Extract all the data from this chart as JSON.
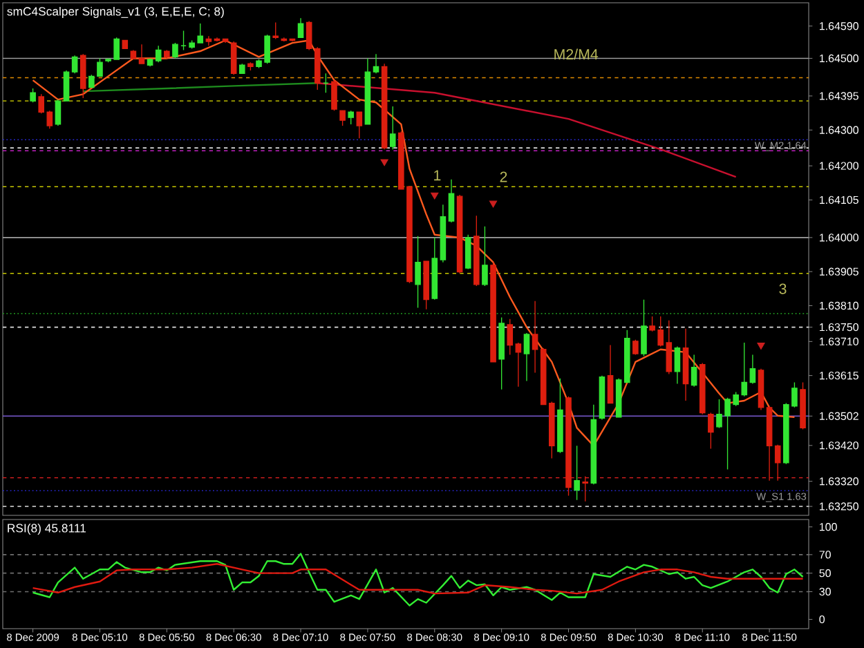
{
  "chart_data": [
    {
      "type": "candlestick",
      "title": "smC4Scalper Signals_v1 (3, E,E,E, C; 8)",
      "categories": [
        null,
        null,
        null,
        null,
        null,
        null,
        null,
        null,
        null,
        null,
        null,
        null,
        null,
        null,
        null,
        null,
        null,
        null,
        null,
        null,
        null,
        null,
        null,
        null,
        null,
        null,
        null,
        null,
        null,
        null,
        null,
        null,
        null,
        null,
        null,
        null,
        null,
        null,
        null,
        null,
        null,
        null,
        null,
        null,
        null,
        null,
        null,
        null,
        null,
        null,
        null,
        null,
        null,
        null,
        null,
        null,
        null,
        null,
        null,
        null,
        null,
        null,
        null,
        null,
        null,
        null,
        null,
        null,
        null,
        null,
        null,
        null,
        null,
        null,
        null,
        null,
        null,
        null,
        null,
        null,
        null,
        null,
        null,
        null,
        null,
        null,
        null,
        null,
        null,
        null,
        null,
        null,
        null
      ],
      "ohlc": [
        [
          1.64381,
          1.64416,
          1.64377,
          1.64404
        ],
        [
          1.64393,
          1.644,
          1.64346,
          1.6435
        ],
        [
          1.6435,
          1.64354,
          1.64304,
          1.64312
        ],
        [
          1.64316,
          1.64385,
          1.64312,
          1.64381
        ],
        [
          1.64381,
          1.64466,
          1.64381,
          1.64462
        ],
        [
          1.64462,
          1.64508,
          1.64458,
          1.64504
        ],
        [
          1.64508,
          1.64512,
          1.64389,
          1.64416
        ],
        [
          1.64419,
          1.64454,
          1.64419,
          1.6445
        ],
        [
          1.6445,
          1.645,
          1.6445,
          1.64489
        ],
        [
          1.64493,
          1.645,
          1.64489,
          1.64497
        ],
        [
          1.64497,
          1.64558,
          1.64497,
          1.64554
        ],
        [
          1.6455,
          1.6455,
          1.64527,
          1.64527
        ],
        [
          1.6452,
          1.64523,
          1.64497,
          1.645
        ],
        [
          1.645,
          1.64539,
          1.64485,
          1.64485
        ],
        [
          1.64481,
          1.645,
          1.64477,
          1.64497
        ],
        [
          1.64493,
          1.64535,
          1.64489,
          1.64523
        ],
        [
          1.6452,
          1.64523,
          1.645,
          1.64504
        ],
        [
          1.64504,
          1.64543,
          1.645,
          1.64539
        ],
        [
          1.64535,
          1.64577,
          1.64523,
          1.64535
        ],
        [
          1.64531,
          1.6455,
          1.64527,
          1.64543
        ],
        [
          1.64543,
          1.64597,
          1.64543,
          1.64562
        ],
        [
          1.64554,
          1.64562,
          1.64535,
          1.64547
        ],
        [
          1.64554,
          1.64558,
          1.64547,
          1.6455
        ],
        [
          1.64554,
          1.64554,
          1.64543,
          1.64547
        ],
        [
          1.64543,
          1.64547,
          1.64454,
          1.64458
        ],
        [
          1.64458,
          1.64485,
          1.64458,
          1.64481
        ],
        [
          1.64485,
          1.64489,
          1.64466,
          1.64477
        ],
        [
          1.64477,
          1.64497,
          1.64473,
          1.64493
        ],
        [
          1.64489,
          1.64566,
          1.64485,
          1.64562
        ],
        [
          1.64562,
          1.646,
          1.64554,
          1.64558
        ],
        [
          1.64554,
          1.64558,
          1.64547,
          1.6455
        ],
        [
          1.64554,
          1.64554,
          1.64547,
          1.6455
        ],
        [
          1.64558,
          1.64612,
          1.64558,
          1.64597
        ],
        [
          1.646,
          1.64604,
          1.64523,
          1.64527
        ],
        [
          1.64527,
          1.64531,
          1.64412,
          1.64431
        ],
        [
          1.64431,
          1.64458,
          1.64404,
          1.64431
        ],
        [
          1.64435,
          1.64439,
          1.64354,
          1.64358
        ],
        [
          1.64354,
          1.64354,
          1.64312,
          1.64327
        ],
        [
          1.64335,
          1.64354,
          1.64316,
          1.6435
        ],
        [
          1.6435,
          1.6435,
          1.64277,
          1.64312
        ],
        [
          1.64316,
          1.645,
          1.64316,
          1.64462
        ],
        [
          1.64462,
          1.64512,
          1.64458,
          1.64477
        ],
        [
          1.64477,
          1.64485,
          1.64246,
          1.6425
        ],
        [
          1.64254,
          1.64366,
          1.64246,
          1.64289
        ],
        [
          1.64292,
          1.64296,
          1.64135,
          1.64135
        ],
        [
          1.64142,
          1.64142,
          1.63873,
          1.63877
        ],
        [
          1.63869,
          1.64004,
          1.63804,
          1.63931
        ],
        [
          1.63934,
          1.63934,
          1.638,
          1.63827
        ],
        [
          1.6383,
          1.64,
          1.63827,
          1.63942
        ],
        [
          1.63938,
          1.64092,
          1.63931,
          1.64058
        ],
        [
          1.64046,
          1.64162,
          1.64042,
          1.64123
        ],
        [
          1.64115,
          1.64119,
          1.639,
          1.63904
        ],
        [
          1.63915,
          1.64008,
          1.63912,
          1.64
        ],
        [
          1.64004,
          1.64061,
          1.63865,
          1.63869
        ],
        [
          1.63869,
          1.64031,
          1.63865,
          1.63923
        ],
        [
          1.63923,
          1.63931,
          1.63653,
          1.63653
        ],
        [
          1.63661,
          1.63777,
          1.63576,
          1.63761
        ],
        [
          1.63757,
          1.63773,
          1.63673,
          1.637
        ],
        [
          1.63703,
          1.63707,
          1.63584,
          1.6368
        ],
        [
          1.63676,
          1.63734,
          1.636,
          1.6373
        ],
        [
          1.6373,
          1.63823,
          1.63623,
          1.63688
        ],
        [
          1.63688,
          1.63692,
          1.63534,
          1.63534
        ],
        [
          1.63538,
          1.63542,
          1.63384,
          1.63419
        ],
        [
          1.63403,
          1.63607,
          1.63399,
          1.63519
        ],
        [
          1.63553,
          1.63557,
          1.6328,
          1.63303
        ],
        [
          1.63295,
          1.63419,
          1.63268,
          1.63322
        ],
        [
          1.63318,
          1.63334,
          1.63264,
          1.63315
        ],
        [
          1.63315,
          1.63534,
          1.63311,
          1.63492
        ],
        [
          1.63496,
          1.63615,
          1.63492,
          1.63611
        ],
        [
          1.63615,
          1.637,
          1.63538,
          1.63538
        ],
        [
          1.63499,
          1.63607,
          1.63499,
          1.63603
        ],
        [
          1.63596,
          1.63742,
          1.63596,
          1.63719
        ],
        [
          1.63711,
          1.63715,
          1.63673,
          1.63676
        ],
        [
          1.63676,
          1.63827,
          1.63669,
          1.63753
        ],
        [
          1.63753,
          1.6378,
          1.63738,
          1.63742
        ],
        [
          1.63742,
          1.6378,
          1.63696,
          1.637
        ],
        [
          1.63707,
          1.63769,
          1.63619,
          1.63626
        ],
        [
          1.63626,
          1.63696,
          1.63592,
          1.63692
        ],
        [
          1.63692,
          1.63746,
          1.63545,
          1.63592
        ],
        [
          1.63588,
          1.63673,
          1.63584,
          1.63638
        ],
        [
          1.63646,
          1.6365,
          1.63507,
          1.63511
        ],
        [
          1.63507,
          1.63511,
          1.63411,
          1.63457
        ],
        [
          1.63472,
          1.63549,
          1.63469,
          1.63507
        ],
        [
          1.63503,
          1.63553,
          1.63353,
          1.63549
        ],
        [
          1.63534,
          1.63569,
          1.6353,
          1.63561
        ],
        [
          1.63561,
          1.63707,
          1.63557,
          1.63596
        ],
        [
          1.63596,
          1.63673,
          1.63592,
          1.63634
        ],
        [
          1.6363,
          1.63634,
          1.63519,
          1.63526
        ],
        [
          1.63526,
          1.6353,
          1.63322,
          1.63419
        ],
        [
          1.63419,
          1.63422,
          1.63322,
          1.63372
        ],
        [
          1.63372,
          1.63538,
          1.63368,
          1.63534
        ],
        [
          1.6353,
          1.63596,
          1.63526,
          1.6358
        ],
        [
          1.63576,
          1.63596,
          1.63465,
          1.63469
        ]
      ],
      "colors": [
        "#33e633",
        "#dd1f0f",
        "#dd1f0f",
        "#33e633",
        "#33e633",
        "#33e633",
        "#dd1f0f",
        "#33e633",
        "#33e633",
        "#33e633",
        "#33e633",
        "#dd1f0f",
        "#dd1f0f",
        "#dd1f0f",
        "#33e633",
        "#33e633",
        "#dd1f0f",
        "#33e633",
        "#33e633",
        "#33e633",
        "#33e633",
        "#dd1f0f",
        "#dd1f0f",
        "#dd1f0f",
        "#dd1f0f",
        "#33e633",
        "#dd1f0f",
        "#33e633",
        "#33e633",
        "#dd1f0f",
        "#dd1f0f",
        "#dd1f0f",
        "#33e633",
        "#dd1f0f",
        "#dd1f0f",
        "#33e633",
        "#dd1f0f",
        "#dd1f0f",
        "#33e633",
        "#dd1f0f",
        "#33e633",
        "#33e633",
        "#dd1f0f",
        "#33e633",
        "#dd1f0f",
        "#dd1f0f",
        "#33e633",
        "#dd1f0f",
        "#33e633",
        "#33e633",
        "#33e633",
        "#dd1f0f",
        "#33e633",
        "#dd1f0f",
        "#33e633",
        "#dd1f0f",
        "#33e633",
        "#dd1f0f",
        "#dd1f0f",
        "#33e633",
        "#dd1f0f",
        "#dd1f0f",
        "#dd1f0f",
        "#33e633",
        "#dd1f0f",
        "#33e633",
        "#dd1f0f",
        "#33e633",
        "#33e633",
        "#dd1f0f",
        "#33e633",
        "#33e633",
        "#dd1f0f",
        "#33e633",
        "#dd1f0f",
        "#dd1f0f",
        "#dd1f0f",
        "#33e633",
        "#dd1f0f",
        "#33e633",
        "#dd1f0f",
        "#dd1f0f",
        "#33e633",
        "#33e633",
        "#33e633",
        "#33e633",
        "#33e633",
        "#dd1f0f",
        "#dd1f0f",
        "#dd1f0f",
        "#33e633",
        "#33e633",
        "#dd1f0f"
      ],
      "series": [
        {
          "type": "line",
          "color": "#1e8c1e",
          "values": [
            null,
            null,
            null,
            null,
            null,
            null,
            1.64408,
            null,
            null,
            null,
            null,
            null,
            null,
            null,
            null,
            null,
            1.64416,
            null,
            null,
            null,
            null,
            null,
            null,
            null,
            1.64423,
            null,
            null,
            null,
            null,
            null,
            null,
            null,
            null,
            null,
            1.64431,
            null,
            null,
            null,
            null,
            null,
            null,
            null,
            null,
            null,
            null,
            null,
            null,
            null,
            null,
            null,
            null,
            null,
            null,
            null,
            null,
            null,
            null,
            null,
            null,
            null,
            null,
            null,
            null,
            null,
            null,
            null,
            null,
            null,
            null,
            null,
            null,
            null,
            null,
            null,
            null,
            null,
            null,
            null,
            null,
            null,
            null,
            null,
            null,
            null,
            null,
            null,
            null,
            null,
            null,
            null,
            null,
            null,
            null
          ]
        },
        {
          "type": "line",
          "color": "#c8102e",
          "values": [
            null,
            null,
            null,
            null,
            null,
            null,
            null,
            null,
            null,
            null,
            null,
            null,
            null,
            null,
            null,
            null,
            null,
            null,
            null,
            null,
            null,
            null,
            null,
            null,
            null,
            null,
            null,
            null,
            null,
            null,
            null,
            null,
            null,
            null,
            1.64431,
            null,
            null,
            null,
            null,
            null,
            null,
            null,
            null,
            null,
            null,
            null,
            null,
            null,
            1.64404,
            null,
            null,
            null,
            null,
            null,
            null,
            null,
            null,
            null,
            null,
            null,
            null,
            null,
            null,
            null,
            1.64331,
            null,
            null,
            null,
            null,
            null,
            null,
            null,
            null,
            null,
            null,
            1.64246,
            null,
            null,
            null,
            null,
            null,
            null,
            null,
            null,
            1.64169,
            null,
            null,
            null,
            null,
            null,
            null,
            null,
            null
          ]
        },
        {
          "type": "line",
          "color": "#ff5a1e",
          "values": [
            1.64439,
            null,
            null,
            1.64385,
            null,
            null,
            1.644,
            null,
            null,
            1.6445,
            null,
            null,
            1.645,
            null,
            null,
            null,
            1.645,
            null,
            null,
            null,
            1.6452,
            null,
            null,
            1.6455,
            null,
            null,
            null,
            1.64504,
            null,
            null,
            null,
            1.64543,
            null,
            1.6455,
            1.64508,
            null,
            1.64439,
            null,
            null,
            1.64385,
            null,
            1.64377,
            null,
            null,
            1.64316,
            1.64192,
            null,
            1.64065,
            1.64008,
            null,
            null,
            1.64,
            null,
            1.63977,
            null,
            1.63931,
            null,
            1.63834,
            null,
            1.6375,
            null,
            null,
            1.63653,
            null,
            1.63538,
            1.63469,
            null,
            1.63419,
            null,
            null,
            1.63538,
            null,
            1.63653,
            null,
            null,
            1.63688,
            null,
            null,
            1.6368,
            null,
            1.63623,
            null,
            1.63565,
            1.63538,
            null,
            1.63545,
            null,
            1.63569,
            1.63526,
            1.63503,
            null,
            1.63499,
            null
          ]
        },
        {
          "type": "scatter",
          "marker": "triangle",
          "color": "#cc1f1f",
          "values": [
            null,
            null,
            null,
            null,
            null,
            null,
            null,
            null,
            null,
            null,
            null,
            null,
            null,
            null,
            null,
            null,
            null,
            null,
            null,
            null,
            null,
            null,
            null,
            null,
            null,
            null,
            null,
            null,
            null,
            null,
            null,
            null,
            null,
            null,
            null,
            null,
            null,
            null,
            null,
            null,
            null,
            null,
            1.64212,
            null,
            null,
            null,
            null,
            null,
            1.64119,
            null,
            null,
            null,
            null,
            null,
            null,
            1.64096,
            null,
            null,
            null,
            null,
            null,
            null,
            null,
            null,
            null,
            null,
            null,
            null,
            null,
            null,
            null,
            null,
            null,
            null,
            null,
            null,
            null,
            null,
            null,
            null,
            null,
            null,
            null,
            null,
            null,
            null,
            null,
            1.637,
            null,
            null,
            null,
            null,
            null
          ]
        }
      ],
      "ylim": [
        1.63225,
        1.64655
      ],
      "yticks": [
        {
          "value": 1.6459,
          "label": "1.64590"
        },
        {
          "value": 1.645,
          "label": "1.64500"
        },
        {
          "value": 1.64395,
          "label": "1.64395"
        },
        {
          "value": 1.643,
          "label": "1.64300"
        },
        {
          "value": 1.642,
          "label": "1.64200"
        },
        {
          "value": 1.64105,
          "label": "1.64105"
        },
        {
          "value": 1.64,
          "label": "1.64000"
        },
        {
          "value": 1.63905,
          "label": "1.63905"
        },
        {
          "value": 1.6381,
          "label": "1.63810"
        },
        {
          "value": 1.6375,
          "label": "1.63750"
        },
        {
          "value": 1.6371,
          "label": "1.63710"
        },
        {
          "value": 1.63615,
          "label": "1.63615"
        },
        {
          "value": 1.63502,
          "label": "1.63502"
        },
        {
          "value": 1.6342,
          "label": "1.63420"
        },
        {
          "value": 1.6332,
          "label": "1.63320"
        },
        {
          "value": 1.6325,
          "label": "1.63250"
        }
      ],
      "ref_lines": [
        {
          "axis": "y",
          "value": 1.645,
          "color": "#a0a0a0",
          "line_style": "solid"
        },
        {
          "axis": "y",
          "value": 1.64446,
          "color": "#e08a00",
          "line_style": "dashed"
        },
        {
          "axis": "y",
          "value": 1.64381,
          "color": "#a0a000",
          "line_style": "dashed"
        },
        {
          "axis": "y",
          "value": 1.64273,
          "color": "#2828d0",
          "line_style": "dotted",
          "label": "W_M2 1.64"
        },
        {
          "axis": "y",
          "value": 1.6425,
          "color": "#e0e0e0",
          "line_style": "dashed"
        },
        {
          "axis": "y",
          "value": 1.64242,
          "color": "#c020c0",
          "line_style": "dashed"
        },
        {
          "axis": "y",
          "value": 1.64142,
          "color": "#c8c800",
          "line_style": "dashed"
        },
        {
          "axis": "y",
          "value": 1.64,
          "color": "#a0a0a0",
          "line_style": "solid"
        },
        {
          "axis": "y",
          "value": 1.639,
          "color": "#c8c800",
          "line_style": "dashed"
        },
        {
          "axis": "y",
          "value": 1.63788,
          "color": "#1e8c1e",
          "line_style": "dotted"
        },
        {
          "axis": "y",
          "value": 1.6375,
          "color": "#e0e0e0",
          "line_style": "dashed"
        },
        {
          "axis": "y",
          "value": 1.63502,
          "color": "#7a5ad0",
          "line_style": "solid"
        },
        {
          "axis": "y",
          "value": 1.6333,
          "color": "#e02020",
          "line_style": "dashed"
        },
        {
          "axis": "y",
          "value": 1.63294,
          "color": "#2828d0",
          "line_style": "dotted",
          "label": "W_S1 1.63"
        },
        {
          "axis": "y",
          "value": 1.6325,
          "color": "#e0e0e0",
          "line_style": "dashed"
        }
      ],
      "annotations": [
        "M2/M4",
        "1",
        "2",
        "3"
      ],
      "tick_labels": "y"
    },
    {
      "type": "line",
      "title": "RSI(8) 45.8111",
      "categories": [
        "8 Dec 2009",
        null,
        null,
        null,
        null,
        null,
        null,
        null,
        "8 Dec 05:10",
        null,
        null,
        null,
        null,
        null,
        null,
        null,
        "8 Dec 05:50",
        null,
        null,
        null,
        null,
        null,
        null,
        null,
        "8 Dec 06:30",
        null,
        null,
        null,
        null,
        null,
        null,
        null,
        "8 Dec 07:10",
        null,
        null,
        null,
        null,
        null,
        null,
        null,
        "8 Dec 07:50",
        null,
        null,
        null,
        null,
        null,
        null,
        null,
        "8 Dec 08:30",
        null,
        null,
        null,
        null,
        null,
        null,
        null,
        "8 Dec 09:10",
        null,
        null,
        null,
        null,
        null,
        null,
        null,
        "8 Dec 09:50",
        null,
        null,
        null,
        null,
        null,
        null,
        null,
        "8 Dec 10:30",
        null,
        null,
        null,
        null,
        null,
        null,
        null,
        "8 Dec 11:10",
        null,
        null,
        null,
        null,
        null,
        null,
        null,
        "8 Dec 11:50",
        null,
        null,
        null,
        null
      ],
      "series": [
        {
          "color": "#33ee33",
          "values": [
            29,
            null,
            24,
            40,
            null,
            56,
            44,
            null,
            54,
            54,
            62,
            56,
            null,
            51,
            51,
            56,
            53,
            59,
            null,
            null,
            63,
            null,
            63,
            59,
            32,
            40,
            40,
            47,
            63,
            63,
            60,
            60,
            71,
            51,
            32,
            32,
            19,
            null,
            26,
            22,
            null,
            54,
            29,
            34,
            null,
            15,
            22,
            18,
            null,
            37,
            47,
            34,
            42,
            37,
            38,
            26,
            35,
            32,
            null,
            35,
            32,
            null,
            21,
            29,
            24,
            null,
            24,
            49,
            null,
            46,
            null,
            57,
            54,
            59,
            57,
            null,
            49,
            51,
            44,
            46,
            37,
            34,
            null,
            41,
            null,
            51,
            54,
            46,
            34,
            29,
            49,
            54,
            46
          ]
        },
        {
          "color": "#e01a10",
          "values": [
            34,
            null,
            null,
            29,
            null,
            35,
            null,
            null,
            41,
            null,
            53,
            null,
            54,
            null,
            null,
            null,
            54,
            null,
            null,
            56,
            null,
            null,
            60,
            null,
            null,
            54,
            null,
            50,
            null,
            null,
            null,
            50,
            54,
            null,
            null,
            54,
            null,
            null,
            null,
            32,
            null,
            null,
            32,
            null,
            null,
            null,
            32,
            null,
            28,
            null,
            null,
            null,
            29,
            null,
            37,
            null,
            null,
            35,
            null,
            null,
            32,
            null,
            31,
            null,
            null,
            28,
            null,
            null,
            32,
            null,
            41,
            null,
            null,
            51,
            null,
            54,
            null,
            54,
            null,
            51,
            null,
            46,
            null,
            44,
            null,
            null,
            44,
            null,
            null,
            null,
            null,
            null,
            44
          ]
        }
      ],
      "ylim": [
        -10,
        108
      ],
      "yticks": [
        0,
        30,
        50,
        70,
        100
      ],
      "ref_lines": [
        {
          "axis": "y",
          "value": 70,
          "color": "#707070",
          "line_style": "dashed"
        },
        {
          "axis": "y",
          "value": 50,
          "color": "#707070",
          "line_style": "dashed"
        },
        {
          "axis": "y",
          "value": 30,
          "color": "#707070",
          "line_style": "dashed"
        }
      ]
    }
  ]
}
